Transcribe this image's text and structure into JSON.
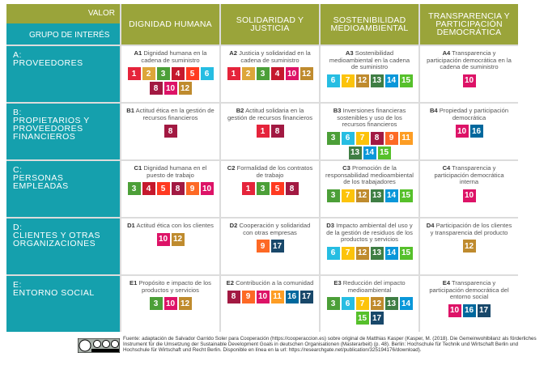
{
  "header": {
    "valor": "VALOR",
    "grupo": "GRUPO DE INTERÉS"
  },
  "columns": [
    "DIGNIDAD HUMANA",
    "SOLIDARIDAD Y JUSTICIA",
    "SOSTENIBILIDAD MEDIOAMBIENTAL",
    "TRANSPARENCIA Y PARTICIPACIÓN DEMOCRÁTICA"
  ],
  "sdg_colors": {
    "1": "#E5243B",
    "2": "#DDA63A",
    "3": "#4C9F38",
    "4": "#C5192D",
    "5": "#FF3A21",
    "6": "#26BDE2",
    "7": "#FCC30B",
    "8": "#A21942",
    "9": "#FD6925",
    "10": "#DD1367",
    "11": "#FD9D24",
    "12": "#BF8B2E",
    "13": "#3F7E44",
    "14": "#0A97D9",
    "15": "#56C02B",
    "16": "#00689D",
    "17": "#19486A"
  },
  "rows": [
    {
      "letter": "A:",
      "label": "PROVEEDORES",
      "cells": [
        {
          "code": "A1",
          "text": "Dignidad humana en la cadena de suministro",
          "sdgs": [
            1,
            2,
            3,
            4,
            5,
            6,
            8,
            10,
            12
          ]
        },
        {
          "code": "A2",
          "text": "Justicia y solidaridad en la cadena de suministro",
          "sdgs": [
            1,
            2,
            3,
            4,
            10,
            12
          ]
        },
        {
          "code": "A3",
          "text": "Sostenibilidad medioambiental en la cadena de suministro",
          "sdgs": [
            6,
            7,
            12,
            13,
            14,
            15
          ]
        },
        {
          "code": "A4",
          "text": "Transparencia y participación democrática en la cadena de suministro",
          "sdgs": [
            10
          ]
        }
      ]
    },
    {
      "letter": "B:",
      "label": "PROPIETARIOS Y PROVEEDORES FINANCIEROS",
      "cells": [
        {
          "code": "B1",
          "text": "Actitud ética en la gestión de recursos financieros",
          "sdgs": [
            8
          ]
        },
        {
          "code": "B2",
          "text": "Actitud solidaria en la gestión de recursos financieros",
          "sdgs": [
            1,
            8
          ]
        },
        {
          "code": "B3",
          "text": "Inversiones financieras sostenibles y uso de los recursos financieros",
          "sdgs": [
            3,
            6,
            7,
            8,
            9,
            11,
            13,
            14,
            15
          ]
        },
        {
          "code": "B4",
          "text": "Propiedad y participación democrática",
          "sdgs": [
            10,
            16
          ]
        }
      ]
    },
    {
      "letter": "C:",
      "label": "PERSONAS EMPLEADAS",
      "cells": [
        {
          "code": "C1",
          "text": "Dignidad humana en el puesto de trabajo",
          "sdgs": [
            3,
            4,
            5,
            8,
            9,
            10
          ]
        },
        {
          "code": "C2",
          "text": "Formalidad de los contratos de trabajo",
          "sdgs": [
            1,
            3,
            5,
            8
          ]
        },
        {
          "code": "C3",
          "text": "Promoción de la responsabilidad medioambiental de los trabajadores",
          "sdgs": [
            3,
            7,
            12,
            13,
            14,
            15
          ]
        },
        {
          "code": "C4",
          "text": "Transparencia y participación democrática interna",
          "sdgs": [
            10
          ]
        }
      ]
    },
    {
      "letter": "D:",
      "label": "CLIENTES Y OTRAS ORGANIZACIONES",
      "cells": [
        {
          "code": "D1",
          "text": "Actitud ética con los clientes",
          "sdgs": [
            10,
            12
          ]
        },
        {
          "code": "D2",
          "text": "Cooperación y solidaridad con otras empresas",
          "sdgs": [
            9,
            17
          ]
        },
        {
          "code": "D3",
          "text": "Impacto ambiental del uso y de la gestión de residuos de los productos y servicios",
          "sdgs": [
            6,
            7,
            12,
            13,
            14,
            15
          ]
        },
        {
          "code": "D4",
          "text": "Participación de los clientes y transparencia del producto",
          "sdgs": [
            12
          ]
        }
      ]
    },
    {
      "letter": "E:",
      "label": "ENTORNO SOCIAL",
      "cells": [
        {
          "code": "E1",
          "text": "Propósito e impacto de los productos y servicios",
          "sdgs": [
            3,
            10,
            12
          ]
        },
        {
          "code": "E2",
          "text": "Contribución a la comunidad",
          "sdgs": [
            8,
            9,
            10,
            11,
            16,
            17
          ]
        },
        {
          "code": "E3",
          "text": "Reducción del impacto medioambiental",
          "sdgs": [
            3,
            6,
            7,
            12,
            13,
            14,
            15,
            17
          ]
        },
        {
          "code": "E4",
          "text": "Transparencia y participación democrática del entorno social",
          "sdgs": [
            10,
            16,
            17
          ]
        }
      ]
    }
  ],
  "footer": "Fuente: adaptación de Salvador Garrido Soler para Cooperación (https://cooperaccion.es) sobre original de Matthias Kasper (Kasper, M. (2018). Die Gemeinwohlbilanz als förderliches Instrument für die Umsetzung der Sustainable Development Goals in deutschen Organisationen (Masterarbeit) (p. 48). Berlin: Hochschule für Technik und Wirtschaft Berlin und Hochschule für Wirtschaft und Recht Berlin. Disponible en línea en la url: https://researchgate.net/publication/325194176/download)."
}
